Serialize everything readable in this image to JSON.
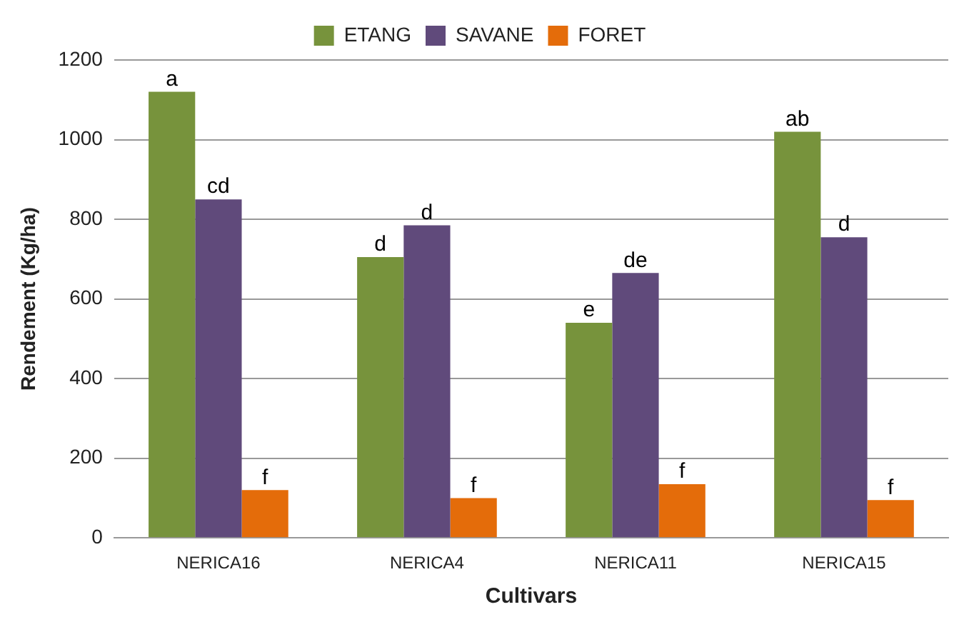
{
  "chart_data": {
    "type": "bar",
    "xlabel": "Cultivars",
    "ylabel": "Rendement (Kg/ha)",
    "categories": [
      "NERICA16",
      "NERICA4",
      "NERICA11",
      "NERICA15"
    ],
    "series": [
      {
        "name": "ETANG",
        "color": "#77933c",
        "values": [
          1120,
          705,
          540,
          1020
        ],
        "value_labels": [
          "a",
          "d",
          "e",
          "ab"
        ]
      },
      {
        "name": "SAVANE",
        "color": "#604a7b",
        "values": [
          850,
          785,
          665,
          755
        ],
        "value_labels": [
          "cd",
          "d",
          "de",
          "d"
        ]
      },
      {
        "name": "FORET",
        "color": "#e46c0a",
        "values": [
          120,
          100,
          135,
          95
        ],
        "value_labels": [
          "f",
          "f",
          "f",
          "f"
        ]
      }
    ],
    "ylim": [
      0,
      1200
    ],
    "yticks": [
      0,
      200,
      400,
      600,
      800,
      1000,
      1200
    ],
    "grid": "y",
    "legend": "top"
  }
}
